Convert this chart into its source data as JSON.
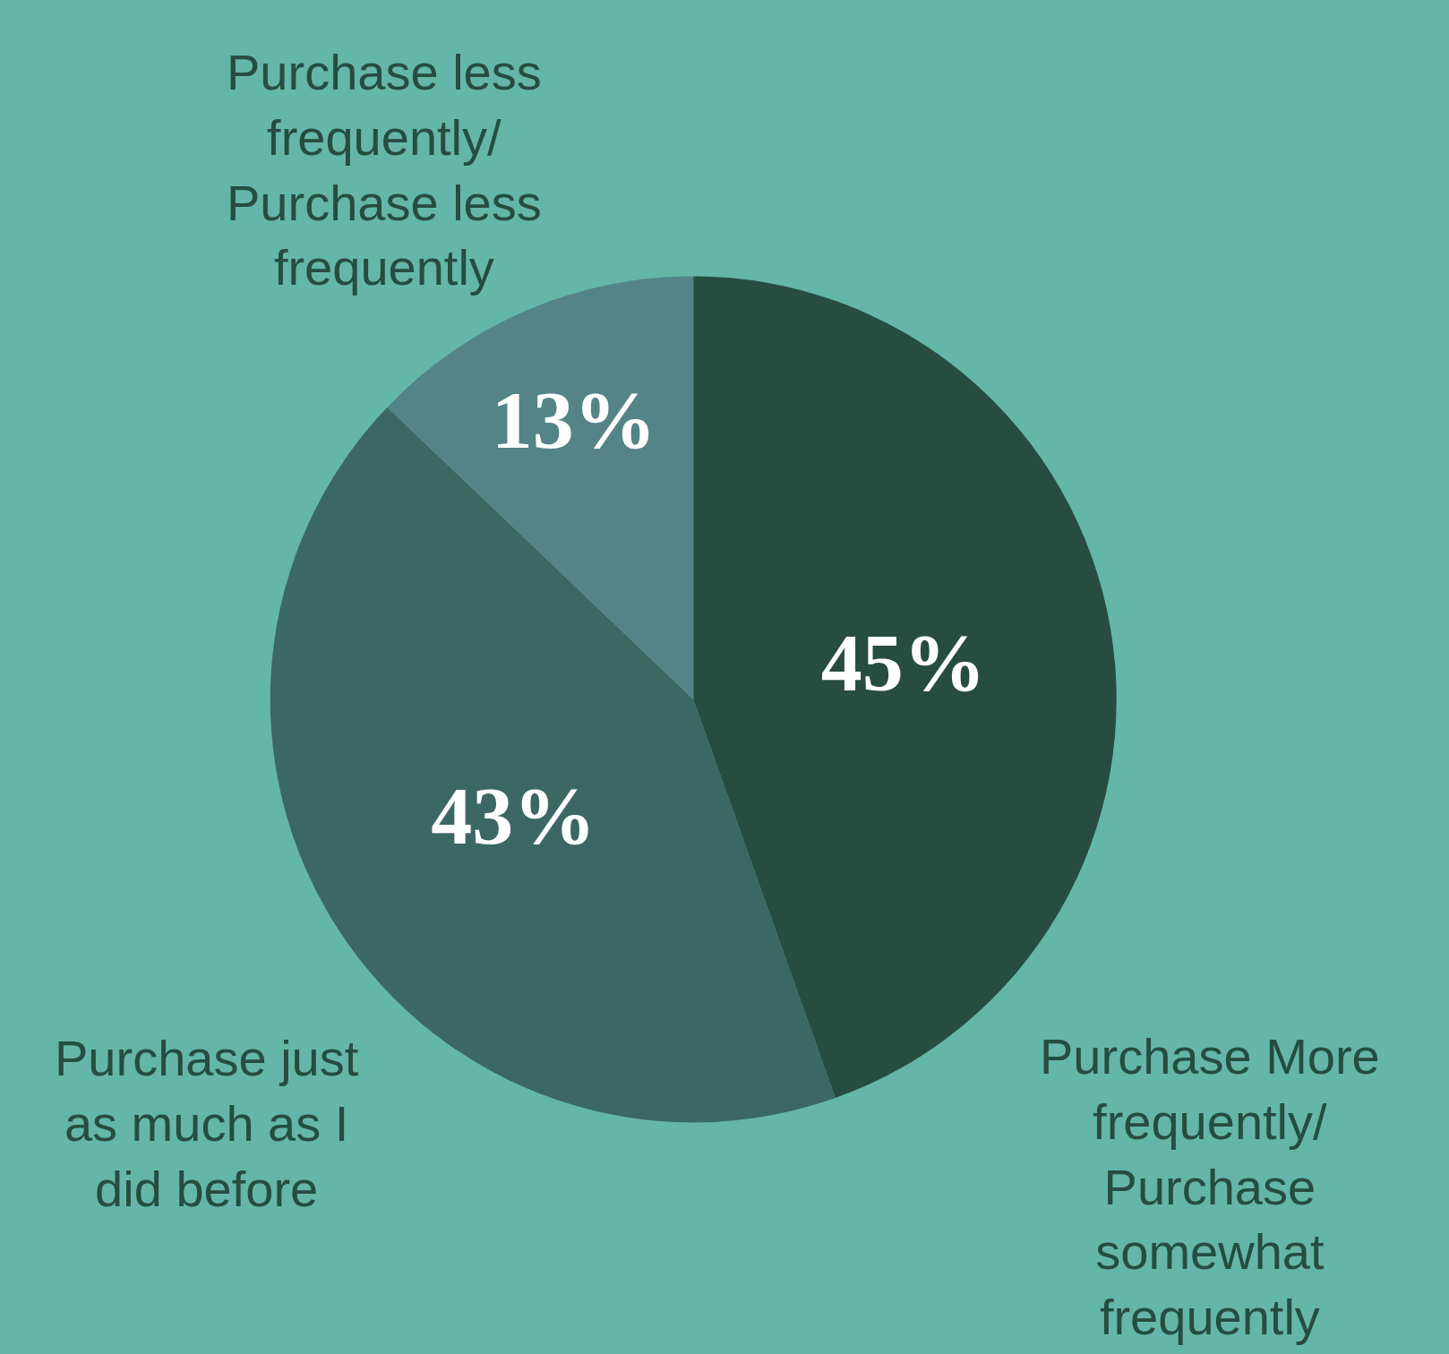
{
  "chart_data": {
    "type": "pie",
    "categories": [
      "Purchase More frequently/ Purchase somewhat frequently",
      "Purchase just as much as I did before",
      "Purchase less frequently/ Purchase less frequently"
    ],
    "values": [
      45,
      43,
      13
    ],
    "value_labels": [
      "45%",
      "43%",
      "13%"
    ],
    "colors": [
      "#264d40",
      "#3b6863",
      "#548487"
    ],
    "legend": false
  }
}
